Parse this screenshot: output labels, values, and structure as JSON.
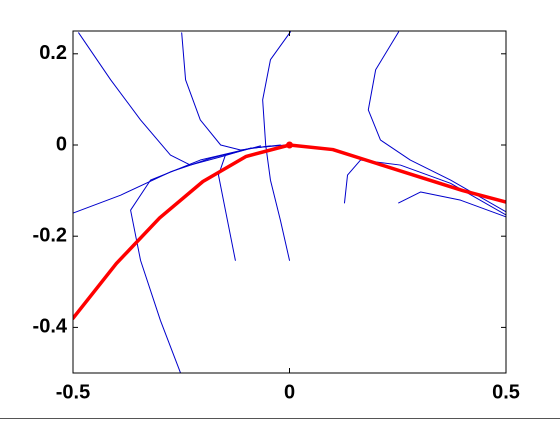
{
  "chart_data": {
    "type": "line",
    "xlim": [
      -0.5,
      0.5
    ],
    "xticks": [
      -0.5,
      0,
      0.5
    ],
    "ylim": [
      -0.5,
      0.25
    ],
    "yticks": [
      -0.4,
      -0.2,
      0,
      0.2
    ],
    "series": [
      {
        "color": "#0000cc",
        "linewidth": 1,
        "x": [
          -0.487,
          -0.413,
          -0.344,
          -0.275,
          -0.229,
          -0.159,
          -0.09,
          -0.021
        ],
        "values": [
          0.246,
          0.143,
          0.055,
          -0.022,
          -0.044,
          -0.026,
          -0.007,
          0
        ]
      },
      {
        "color": "#0000cc",
        "linewidth": 1,
        "x": [
          -0.249,
          -0.24,
          -0.206,
          -0.159,
          -0.113,
          -0.044
        ],
        "values": [
          0.246,
          0.143,
          0.055,
          0,
          -0.011,
          -0.002
        ]
      },
      {
        "color": "#0000cc",
        "linewidth": 1,
        "x": [
          0.002,
          -0.044,
          -0.062,
          -0.055,
          -0.044,
          -0.021,
          0
        ],
        "values": [
          0.248,
          0.187,
          0.099,
          0,
          -0.077,
          -0.165,
          -0.253
        ]
      },
      {
        "color": "#0000cc",
        "linewidth": 1,
        "x": [
          0.252,
          0.199,
          0.182,
          0.21,
          0.279,
          0.372,
          0.501
        ],
        "values": [
          0.248,
          0.165,
          0.077,
          0.011,
          -0.033,
          -0.077,
          -0.147
        ]
      },
      {
        "color": "#0000cc",
        "linewidth": 1,
        "x": [
          0.127,
          0.134,
          0.164,
          0.256,
          0.372,
          0.501
        ],
        "values": [
          -0.127,
          -0.066,
          -0.033,
          -0.044,
          -0.084,
          -0.154
        ]
      },
      {
        "color": "#0000cc",
        "linewidth": 1,
        "x": [
          0.252,
          0.303,
          0.395,
          0.501
        ],
        "values": [
          -0.127,
          -0.103,
          -0.121,
          -0.158
        ]
      },
      {
        "color": "#0000cc",
        "linewidth": 1,
        "x": [
          -0.499,
          -0.39,
          -0.275,
          -0.182,
          -0.09,
          -0.009
        ],
        "values": [
          -0.149,
          -0.11,
          -0.059,
          -0.029,
          -0.007,
          0
        ]
      },
      {
        "color": "#0000cc",
        "linewidth": 1,
        "x": [
          -0.252,
          -0.298,
          -0.344,
          -0.367,
          -0.321,
          -0.206,
          -0.09
        ],
        "values": [
          -0.499,
          -0.385,
          -0.253,
          -0.143,
          -0.077,
          -0.033,
          -0.007
        ]
      },
      {
        "color": "#0000cc",
        "linewidth": 1,
        "x": [
          -0.125,
          -0.148,
          -0.164,
          -0.148,
          -0.067
        ],
        "values": [
          -0.253,
          -0.143,
          -0.066,
          -0.022,
          -0.002
        ]
      },
      {
        "color": "#ff0000",
        "linewidth": 3.5,
        "x": [
          -0.5,
          -0.4,
          -0.3,
          -0.2,
          -0.1,
          0,
          0.1,
          0.2,
          0.3,
          0.4,
          0.5
        ],
        "values": [
          -0.38,
          -0.26,
          -0.16,
          -0.08,
          -0.025,
          0,
          -0.01,
          -0.04,
          -0.07,
          -0.1,
          -0.125
        ]
      },
      {
        "color": "#ff0000",
        "marker": "o",
        "x": [
          0
        ],
        "values": [
          0
        ]
      }
    ]
  }
}
